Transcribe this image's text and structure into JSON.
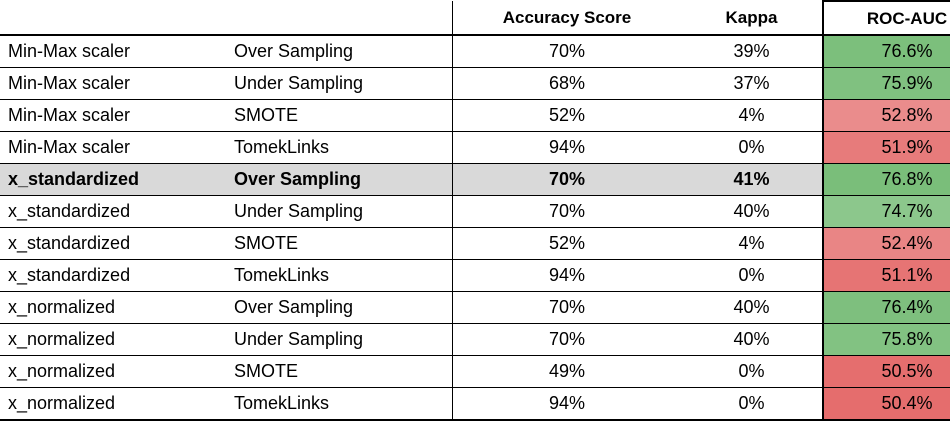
{
  "chart_data": {
    "type": "table",
    "columns": [
      "",
      "",
      "Accuracy Score",
      "Kappa",
      "ROC-AUC"
    ],
    "rows": [
      {
        "scaler": "Min-Max scaler",
        "sampling": "Over Sampling",
        "accuracy": "70%",
        "kappa": "39%",
        "roc_auc": "76.6%",
        "roc_color": "#7cbf7c"
      },
      {
        "scaler": "Min-Max scaler",
        "sampling": "Under Sampling",
        "accuracy": "68%",
        "kappa": "37%",
        "roc_auc": "75.9%",
        "roc_color": "#80c180"
      },
      {
        "scaler": "Min-Max scaler",
        "sampling": "SMOTE",
        "accuracy": "52%",
        "kappa": "4%",
        "roc_auc": "52.8%",
        "roc_color": "#ea8c8c"
      },
      {
        "scaler": "Min-Max scaler",
        "sampling": "TomekLinks",
        "accuracy": "94%",
        "kappa": "0%",
        "roc_auc": "51.9%",
        "roc_color": "#e77b7b"
      },
      {
        "scaler": "x_standardized",
        "sampling": "Over Sampling",
        "accuracy": "70%",
        "kappa": "41%",
        "roc_auc": "76.8%",
        "roc_color": "#7abe7a",
        "highlight": true
      },
      {
        "scaler": "x_standardized",
        "sampling": "Under Sampling",
        "accuracy": "70%",
        "kappa": "40%",
        "roc_auc": "74.7%",
        "roc_color": "#8cc78c"
      },
      {
        "scaler": "x_standardized",
        "sampling": "SMOTE",
        "accuracy": "52%",
        "kappa": "4%",
        "roc_auc": "52.4%",
        "roc_color": "#e98585"
      },
      {
        "scaler": "x_standardized",
        "sampling": "TomekLinks",
        "accuracy": "94%",
        "kappa": "0%",
        "roc_auc": "51.1%",
        "roc_color": "#e67474"
      },
      {
        "scaler": "x_normalized",
        "sampling": "Over Sampling",
        "accuracy": "70%",
        "kappa": "40%",
        "roc_auc": "76.4%",
        "roc_color": "#7ebf7e"
      },
      {
        "scaler": "x_normalized",
        "sampling": "Under Sampling",
        "accuracy": "70%",
        "kappa": "40%",
        "roc_auc": "75.8%",
        "roc_color": "#82c282"
      },
      {
        "scaler": "x_normalized",
        "sampling": "SMOTE",
        "accuracy": "49%",
        "kappa": "0%",
        "roc_auc": "50.5%",
        "roc_color": "#e56e6e"
      },
      {
        "scaler": "x_normalized",
        "sampling": "TomekLinks",
        "accuracy": "94%",
        "kappa": "0%",
        "roc_auc": "50.4%",
        "roc_color": "#e56d6d"
      }
    ]
  }
}
